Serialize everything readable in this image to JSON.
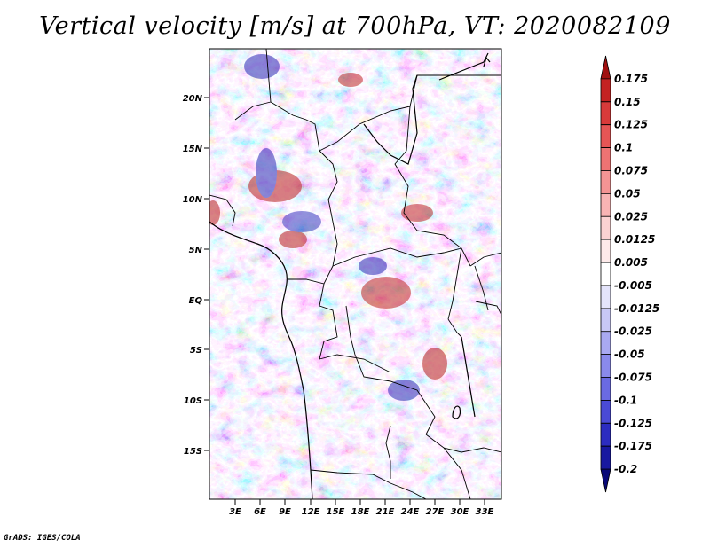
{
  "title": "Vertical velocity [m/s] at 700hPa, VT: 2020082109",
  "credit": "GrADS: IGES/COLA",
  "map": {
    "region": "Central Africa",
    "lat_labels": [
      "20N",
      "15N",
      "10N",
      "5N",
      "EQ",
      "5S",
      "10S",
      "15S"
    ],
    "lon_labels": [
      "3E",
      "6E",
      "9E",
      "12E",
      "15E",
      "18E",
      "21E",
      "24E",
      "27E",
      "30E",
      "33E"
    ]
  },
  "colorbar": {
    "labels": [
      "0.175",
      "0.15",
      "0.125",
      "0.1",
      "0.075",
      "0.05",
      "0.025",
      "0.0125",
      "0.005",
      "-0.005",
      "-0.0125",
      "-0.025",
      "-0.05",
      "-0.075",
      "-0.1",
      "-0.125",
      "-0.175",
      "-0.2"
    ],
    "colors": [
      "#a01010",
      "#c42222",
      "#d83a3a",
      "#e55555",
      "#ee7373",
      "#f49494",
      "#f8b4b4",
      "#fbd2d2",
      "#fdeaea",
      "#ffffff",
      "#e4e4fb",
      "#c8c8f6",
      "#a9a9f1",
      "#8a8aeb",
      "#6a6ae2",
      "#4a4ad5",
      "#2c2cc0",
      "#1818a0",
      "#0a0a78"
    ]
  }
}
